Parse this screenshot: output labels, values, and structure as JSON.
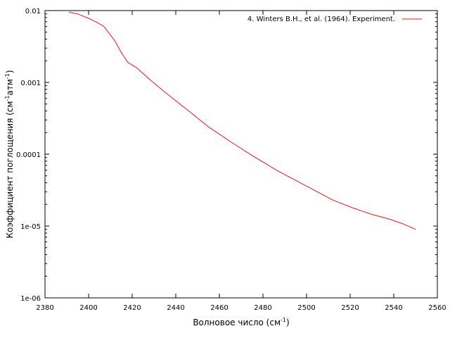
{
  "chart_data": {
    "type": "line",
    "xlabel": "Волновое число (см",
    "xlabel_sup": "-1",
    "xlabel_end": ")",
    "ylabel_parts": [
      "Коэффициент поглощения (см",
      "-1",
      "атм",
      "-1",
      ")"
    ],
    "xlim": [
      2380,
      2560
    ],
    "ylim": [
      1e-06,
      0.01
    ],
    "yscale": "log",
    "xticks": [
      2380,
      2400,
      2420,
      2440,
      2460,
      2480,
      2500,
      2520,
      2540,
      2560
    ],
    "yticks": [
      {
        "value": 0.01,
        "label": "0.01"
      },
      {
        "value": 0.001,
        "label": "0.001"
      },
      {
        "value": 0.0001,
        "label": "0.0001"
      },
      {
        "value": 1e-05,
        "label": "1e-05"
      },
      {
        "value": 1e-06,
        "label": "1e-06"
      }
    ],
    "grid": false,
    "legend_position": "top-right",
    "series": [
      {
        "name": "4. Winters B.H., et al. (1964). Experiment.",
        "color": "#e41a1c",
        "x": [
          2391,
          2395,
          2400,
          2404,
          2407,
          2409,
          2412,
          2415,
          2418,
          2422,
          2428,
          2435,
          2445,
          2455,
          2465,
          2475,
          2487,
          2500,
          2512,
          2521,
          2530,
          2538,
          2544,
          2550
        ],
        "y": [
          0.0095,
          0.009,
          0.0078,
          0.0068,
          0.006,
          0.005,
          0.0038,
          0.0026,
          0.0019,
          0.0016,
          0.0011,
          0.00073,
          0.00042,
          0.00024,
          0.00015,
          9.6e-05,
          5.8e-05,
          3.6e-05,
          2.3e-05,
          1.8e-05,
          1.45e-05,
          1.25e-05,
          1.08e-05,
          9e-06
        ]
      }
    ]
  }
}
